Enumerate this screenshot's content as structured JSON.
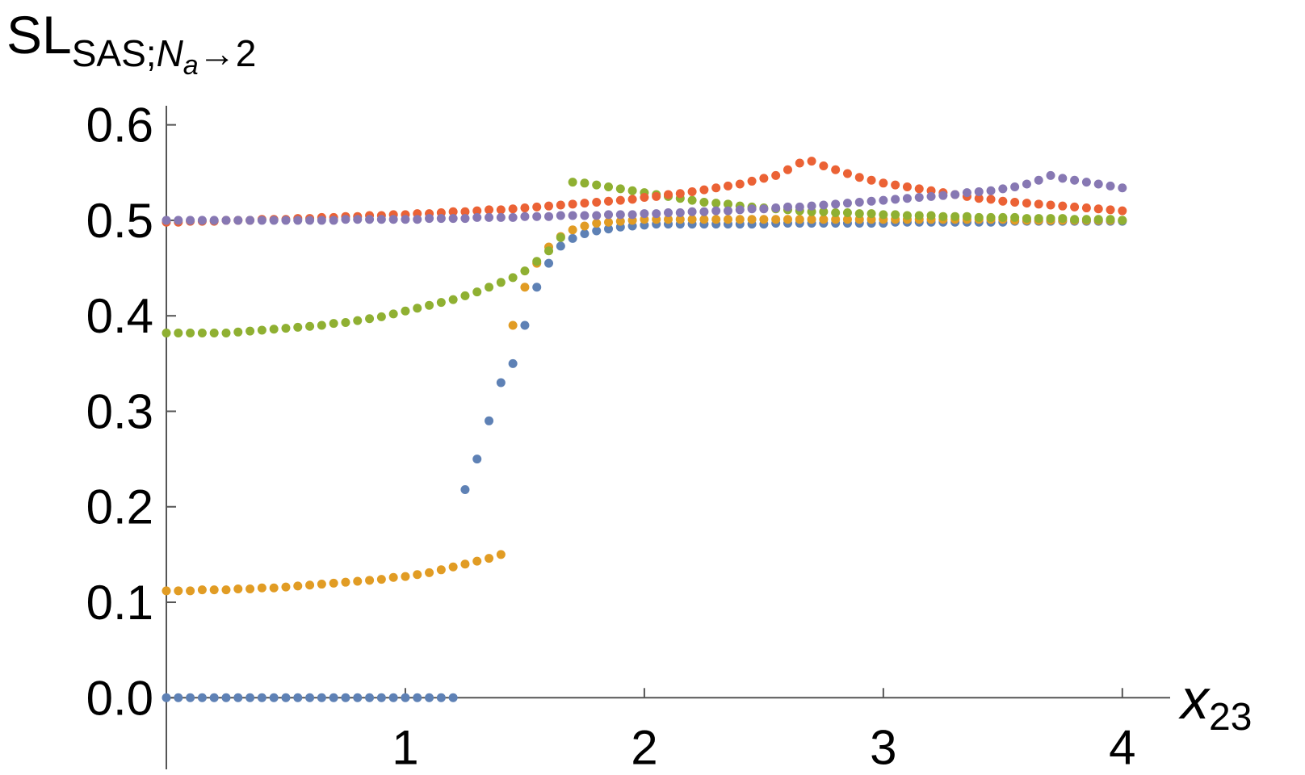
{
  "chart_data": {
    "type": "scatter",
    "ylabel": {
      "main": "SL",
      "sub": "SAS;",
      "sub_italic": "N",
      "sub_sub": "a",
      "sub_end": "→2"
    },
    "xlabel": {
      "main": "x",
      "sub": "23"
    },
    "xlim": [
      0,
      4.2
    ],
    "ylim": [
      -0.075,
      0.62
    ],
    "xticks": [
      1,
      2,
      3,
      4
    ],
    "yticks": [
      {
        "value": 0,
        "label": "0.0"
      },
      0.1,
      0.2,
      0.3,
      0.4,
      0.5,
      0.6
    ],
    "x": [
      0,
      0.05,
      0.1,
      0.15,
      0.2,
      0.25,
      0.3,
      0.35,
      0.4,
      0.45,
      0.5,
      0.55,
      0.6,
      0.65,
      0.7,
      0.75,
      0.8,
      0.85,
      0.9,
      0.95,
      1,
      1.05,
      1.1,
      1.15,
      1.2,
      1.25,
      1.3,
      1.35,
      1.4,
      1.45,
      1.5,
      1.55,
      1.6,
      1.65,
      1.7,
      1.75,
      1.8,
      1.85,
      1.9,
      1.95,
      2,
      2.05,
      2.1,
      2.15,
      2.2,
      2.25,
      2.3,
      2.35,
      2.4,
      2.45,
      2.5,
      2.55,
      2.6,
      2.65,
      2.7,
      2.75,
      2.8,
      2.85,
      2.9,
      2.95,
      3,
      3.05,
      3.1,
      3.15,
      3.2,
      3.25,
      3.3,
      3.35,
      3.4,
      3.45,
      3.5,
      3.55,
      3.6,
      3.65,
      3.7,
      3.75,
      3.8,
      3.85,
      3.9,
      3.95,
      4
    ],
    "series": [
      {
        "color": "#5e81b5",
        "values": [
          0,
          0,
          0,
          0,
          0,
          0,
          0,
          0,
          0,
          0,
          0,
          0,
          0,
          0,
          0,
          0,
          0,
          0,
          0,
          0,
          0,
          0,
          0,
          0,
          0,
          0.218,
          0.25,
          0.29,
          0.33,
          0.35,
          0.39,
          0.43,
          0.455,
          0.473,
          0.481,
          0.486,
          0.489,
          0.491,
          0.493,
          0.494,
          0.495,
          0.496,
          0.496,
          0.496,
          0.496,
          0.496,
          0.496,
          0.496,
          0.496,
          0.496,
          0.496,
          0.497,
          0.497,
          0.497,
          0.497,
          0.497,
          0.497,
          0.497,
          0.497,
          0.497,
          0.497,
          0.498,
          0.498,
          0.498,
          0.498,
          0.498,
          0.498,
          0.498,
          0.498,
          0.498,
          0.498,
          0.499,
          0.499,
          0.499,
          0.499,
          0.499,
          0.499,
          0.499,
          0.499,
          0.499,
          0.499
        ]
      },
      {
        "color": "#e19c24",
        "values": [
          0.112,
          0.112,
          0.112,
          0.113,
          0.113,
          0.113,
          0.114,
          0.114,
          0.115,
          0.115,
          0.116,
          0.117,
          0.118,
          0.119,
          0.12,
          0.121,
          0.122,
          0.123,
          0.124,
          0.126,
          0.127,
          0.129,
          0.131,
          0.134,
          0.137,
          0.14,
          0.143,
          0.146,
          0.15,
          0.39,
          0.43,
          0.455,
          0.472,
          0.483,
          0.49,
          0.494,
          0.497,
          0.498,
          0.499,
          0.5,
          0.501,
          0.501,
          0.501,
          0.501,
          0.501,
          0.501,
          0.501,
          0.501,
          0.501,
          0.501,
          0.501,
          0.501,
          0.501,
          0.501,
          0.501,
          0.501,
          0.501,
          0.501,
          0.501,
          0.501,
          0.501,
          0.501,
          0.501,
          0.501,
          0.501,
          0.501,
          0.501,
          0.501,
          0.501,
          0.501,
          0.501,
          0.5,
          0.5,
          0.5,
          0.5,
          0.5,
          0.5,
          0.5,
          0.5,
          0.5,
          0.5
        ]
      },
      {
        "color": "#8fb032",
        "values": [
          0.382,
          0.382,
          0.382,
          0.382,
          0.382,
          0.382,
          0.383,
          0.384,
          0.385,
          0.386,
          0.387,
          0.388,
          0.389,
          0.39,
          0.392,
          0.393,
          0.395,
          0.397,
          0.399,
          0.402,
          0.405,
          0.408,
          0.411,
          0.414,
          0.417,
          0.421,
          0.425,
          0.43,
          0.435,
          0.44,
          0.447,
          0.457,
          0.468,
          0.482,
          0.54,
          0.539,
          0.537,
          0.535,
          0.533,
          0.531,
          0.529,
          0.527,
          0.525,
          0.523,
          0.521,
          0.519,
          0.518,
          0.517,
          0.515,
          0.514,
          0.513,
          0.512,
          0.511,
          0.51,
          0.509,
          0.509,
          0.508,
          0.508,
          0.507,
          0.507,
          0.506,
          0.506,
          0.505,
          0.505,
          0.505,
          0.504,
          0.504,
          0.504,
          0.503,
          0.503,
          0.503,
          0.503,
          0.502,
          0.502,
          0.502,
          0.502,
          0.501,
          0.501,
          0.501,
          0.501,
          0.5
        ]
      },
      {
        "color": "#eb6235",
        "values": [
          0.498,
          0.498,
          0.499,
          0.499,
          0.499,
          0.5,
          0.5,
          0.5,
          0.501,
          0.501,
          0.501,
          0.502,
          0.502,
          0.503,
          0.503,
          0.504,
          0.504,
          0.505,
          0.505,
          0.506,
          0.506,
          0.507,
          0.507,
          0.508,
          0.509,
          0.509,
          0.51,
          0.511,
          0.511,
          0.512,
          0.513,
          0.514,
          0.515,
          0.516,
          0.517,
          0.518,
          0.519,
          0.52,
          0.521,
          0.522,
          0.524,
          0.525,
          0.527,
          0.528,
          0.53,
          0.532,
          0.534,
          0.536,
          0.538,
          0.541,
          0.544,
          0.547,
          0.553,
          0.56,
          0.562,
          0.557,
          0.553,
          0.549,
          0.545,
          0.542,
          0.539,
          0.537,
          0.535,
          0.533,
          0.531,
          0.529,
          0.527,
          0.525,
          0.523,
          0.522,
          0.52,
          0.519,
          0.518,
          0.517,
          0.516,
          0.515,
          0.514,
          0.513,
          0.512,
          0.511,
          0.51
        ]
      },
      {
        "color": "#8778b3",
        "values": [
          0.5,
          0.5,
          0.5,
          0.5,
          0.5,
          0.5,
          0.5,
          0.5,
          0.5,
          0.5,
          0.5,
          0.5,
          0.5,
          0.5,
          0.5,
          0.501,
          0.501,
          0.501,
          0.501,
          0.501,
          0.501,
          0.501,
          0.502,
          0.502,
          0.502,
          0.502,
          0.503,
          0.503,
          0.503,
          0.503,
          0.504,
          0.504,
          0.504,
          0.505,
          0.505,
          0.505,
          0.505,
          0.506,
          0.506,
          0.506,
          0.507,
          0.507,
          0.508,
          0.508,
          0.509,
          0.509,
          0.51,
          0.51,
          0.511,
          0.512,
          0.512,
          0.513,
          0.514,
          0.514,
          0.515,
          0.516,
          0.517,
          0.518,
          0.519,
          0.52,
          0.521,
          0.522,
          0.523,
          0.524,
          0.525,
          0.526,
          0.527,
          0.529,
          0.53,
          0.531,
          0.533,
          0.535,
          0.538,
          0.542,
          0.547,
          0.544,
          0.542,
          0.54,
          0.538,
          0.536,
          0.534
        ]
      }
    ]
  }
}
